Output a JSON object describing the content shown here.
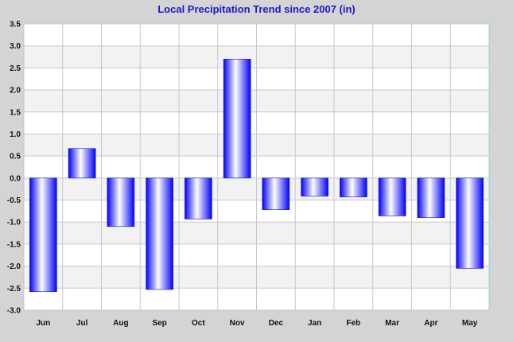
{
  "chart_data": {
    "type": "bar",
    "title": "Local Precipitation Trend since 2007 (in)",
    "xlabel": "",
    "ylabel": "",
    "categories": [
      "Jun",
      "Jul",
      "Aug",
      "Sep",
      "Oct",
      "Nov",
      "Dec",
      "Jan",
      "Feb",
      "Mar",
      "Apr",
      "May"
    ],
    "values": [
      -2.58,
      0.67,
      -1.1,
      -2.53,
      -0.93,
      2.7,
      -0.72,
      -0.41,
      -0.43,
      -0.86,
      -0.9,
      -2.05
    ],
    "ylim": [
      -3.0,
      3.5
    ],
    "yticks": [
      "3.5",
      "3.0",
      "2.5",
      "2.0",
      "1.5",
      "1.0",
      "0.5",
      "0.0",
      "-0.5",
      "-1.0",
      "-1.5",
      "-2.0",
      "-2.5",
      "-3.0"
    ],
    "grid": true,
    "colors": {
      "background": "#d4d4d4",
      "plot_band_a": "#ffffff",
      "plot_band_b": "#f2f2f2",
      "grid": "#c8c8c8",
      "bar_edge": "#0000ff",
      "bar_center": "#ffffff",
      "title": "#1a1ac8"
    }
  }
}
